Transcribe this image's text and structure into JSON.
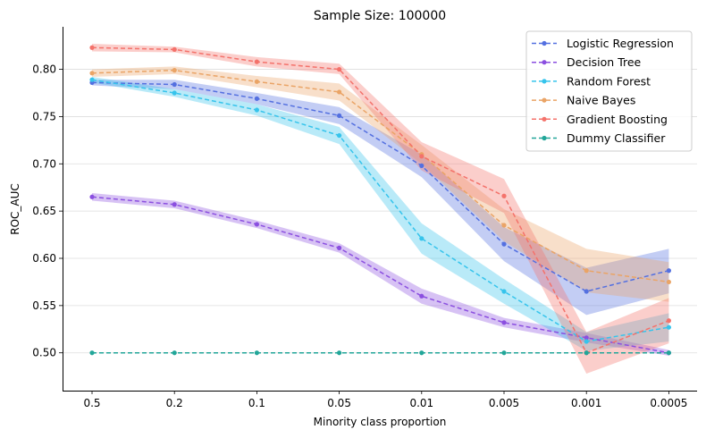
{
  "chart_data": {
    "type": "line",
    "title": "Sample Size: 100000",
    "xlabel": "Minority class proportion",
    "ylabel": "ROC_AUC",
    "categories": [
      "0.5",
      "0.2",
      "0.1",
      "0.05",
      "0.01",
      "0.005",
      "0.001",
      "0.0005"
    ],
    "ylim": [
      0.46,
      0.845
    ],
    "yticks": [
      0.5,
      0.55,
      0.6,
      0.65,
      0.7,
      0.75,
      0.8
    ],
    "ytick_labels": [
      "0.50",
      "0.55",
      "0.60",
      "0.65",
      "0.70",
      "0.75",
      "0.80"
    ],
    "grid": "horizontal",
    "legend_position": "top-right",
    "series": [
      {
        "name": "Logistic Regression",
        "color": "#5470e0",
        "values": [
          0.786,
          0.784,
          0.769,
          0.751,
          0.698,
          0.615,
          0.565,
          0.587
        ],
        "lower": [
          0.783,
          0.779,
          0.763,
          0.742,
          0.686,
          0.597,
          0.54,
          0.563
        ],
        "upper": [
          0.789,
          0.789,
          0.775,
          0.76,
          0.71,
          0.633,
          0.59,
          0.61
        ]
      },
      {
        "name": "Decision Tree",
        "color": "#8b4fe0",
        "values": [
          0.665,
          0.657,
          0.636,
          0.611,
          0.56,
          0.532,
          0.516,
          0.5
        ],
        "lower": [
          0.661,
          0.653,
          0.632,
          0.606,
          0.552,
          0.527,
          0.511,
          0.497
        ],
        "upper": [
          0.669,
          0.661,
          0.64,
          0.616,
          0.568,
          0.537,
          0.521,
          0.503
        ]
      },
      {
        "name": "Random Forest",
        "color": "#36c4ec",
        "values": [
          0.789,
          0.775,
          0.757,
          0.73,
          0.621,
          0.565,
          0.512,
          0.527
        ],
        "lower": [
          0.786,
          0.771,
          0.751,
          0.721,
          0.605,
          0.552,
          0.502,
          0.512
        ],
        "upper": [
          0.792,
          0.779,
          0.763,
          0.739,
          0.637,
          0.578,
          0.522,
          0.542
        ]
      },
      {
        "name": "Naive Bayes",
        "color": "#eaa466",
        "values": [
          0.796,
          0.799,
          0.787,
          0.776,
          0.71,
          0.635,
          0.587,
          0.575
        ],
        "lower": [
          0.792,
          0.795,
          0.781,
          0.767,
          0.7,
          0.618,
          0.564,
          0.554
        ],
        "upper": [
          0.8,
          0.803,
          0.793,
          0.785,
          0.72,
          0.652,
          0.61,
          0.596
        ]
      },
      {
        "name": "Gradient Boosting",
        "color": "#f4726b",
        "values": [
          0.823,
          0.821,
          0.808,
          0.8,
          0.708,
          0.666,
          0.5,
          0.534
        ],
        "lower": [
          0.819,
          0.818,
          0.803,
          0.795,
          0.693,
          0.648,
          0.478,
          0.51
        ],
        "upper": [
          0.827,
          0.824,
          0.813,
          0.806,
          0.723,
          0.684,
          0.522,
          0.558
        ]
      },
      {
        "name": "Dummy Classifier",
        "color": "#22a699",
        "values": [
          0.5,
          0.5,
          0.5,
          0.5,
          0.5,
          0.5,
          0.5,
          0.5
        ],
        "lower": [
          0.5,
          0.5,
          0.5,
          0.5,
          0.5,
          0.5,
          0.5,
          0.5
        ],
        "upper": [
          0.5,
          0.5,
          0.5,
          0.5,
          0.5,
          0.5,
          0.5,
          0.5
        ]
      }
    ]
  }
}
